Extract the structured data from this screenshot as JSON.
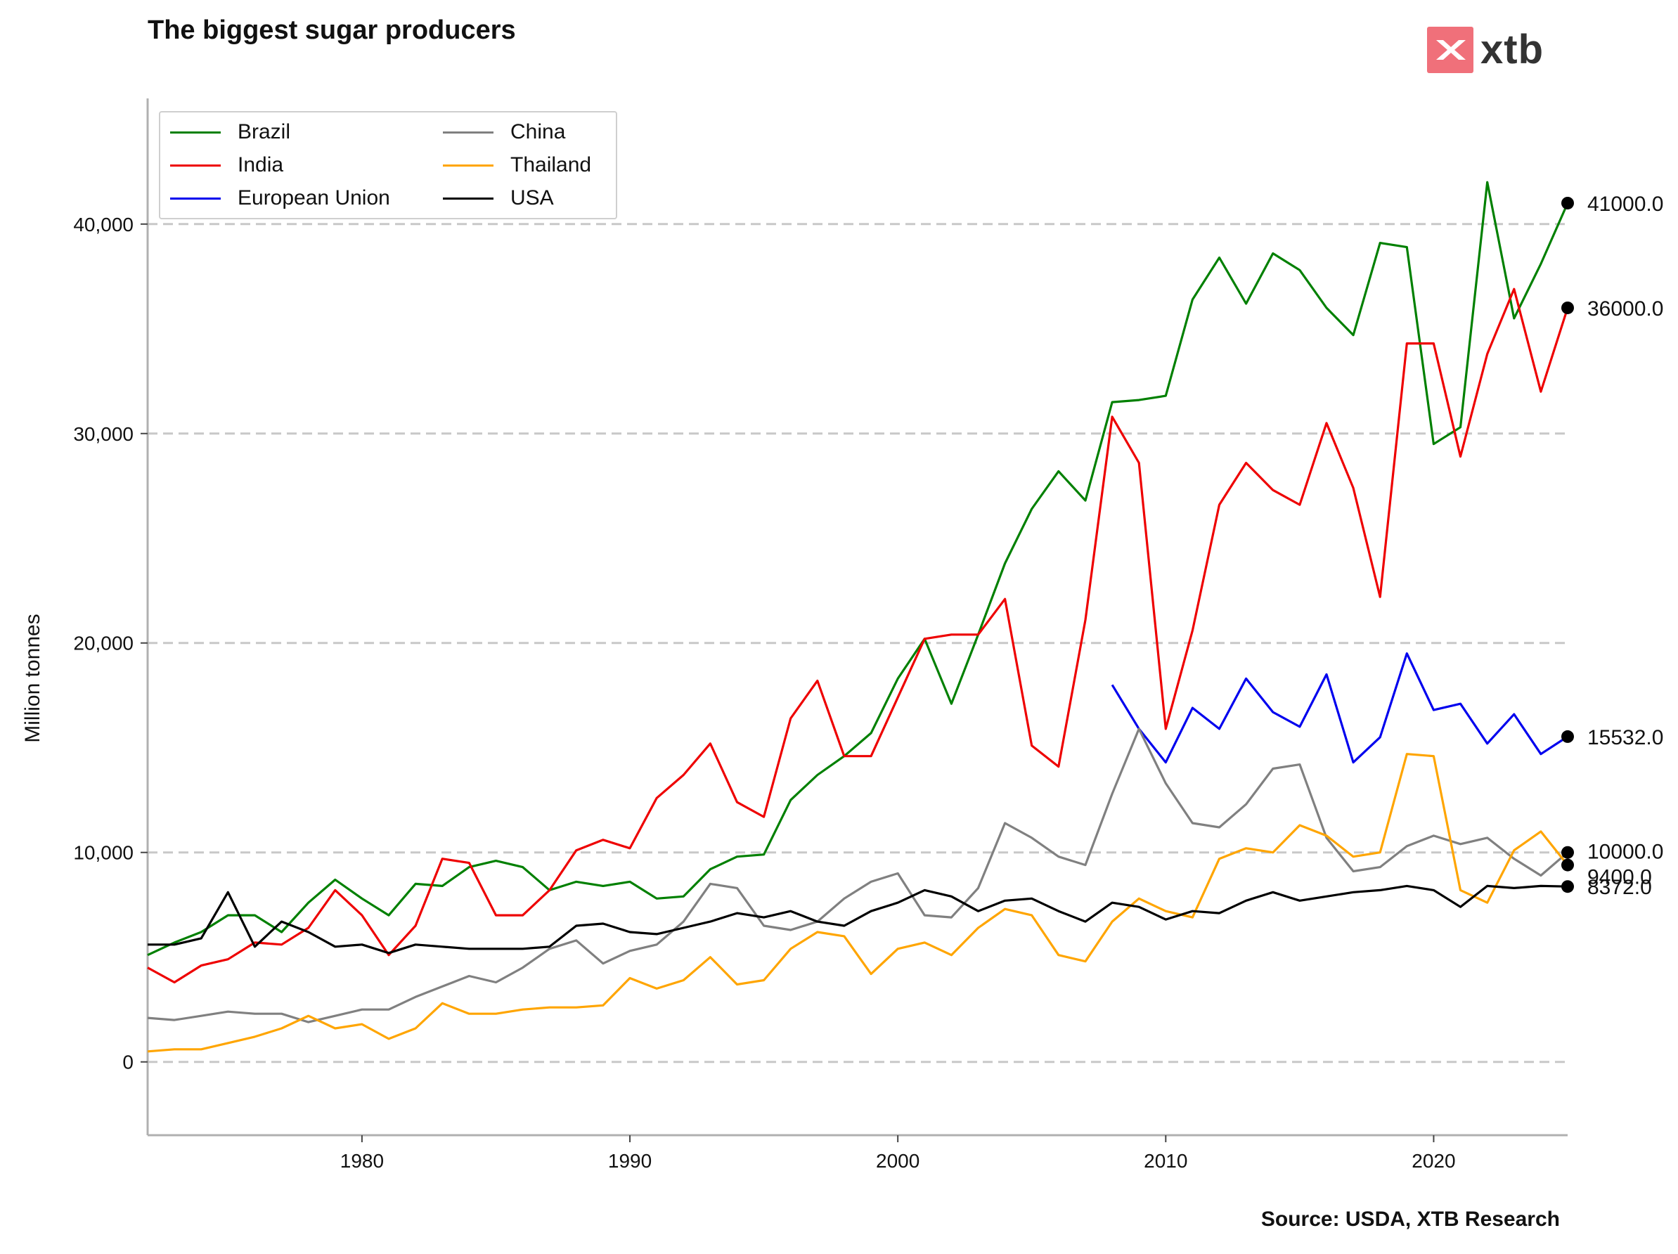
{
  "title": "The biggest sugar producers",
  "source": "Source: USDA, XTB Research",
  "logo_text": "xtb",
  "colors": {
    "logo": "#f0707a",
    "grid": "#c8c8c8"
  },
  "chart_data": {
    "type": "line",
    "title": "The biggest sugar producers",
    "xlabel": "",
    "ylabel": "Million tonnes",
    "xlim": [
      1972,
      2025
    ],
    "ylim": [
      -3500,
      46000
    ],
    "xticks": [
      1980,
      1990,
      2000,
      2010,
      2020
    ],
    "xtick_labels": [
      "1980",
      "1990",
      "2000",
      "2010",
      "2020"
    ],
    "yticks": [
      0,
      10000,
      20000,
      30000,
      40000
    ],
    "ytick_labels": [
      "0",
      "10,000",
      "20,000",
      "30,000",
      "40,000"
    ],
    "grid": "horizontal dashed",
    "legend_position": "top-left",
    "series": [
      {
        "name": "Brazil",
        "color": "#008000",
        "end_label": "41000.0",
        "x": [
          1972,
          1973,
          1974,
          1975,
          1976,
          1977,
          1978,
          1979,
          1980,
          1981,
          1982,
          1983,
          1984,
          1985,
          1986,
          1987,
          1988,
          1989,
          1990,
          1991,
          1992,
          1993,
          1994,
          1995,
          1996,
          1997,
          1998,
          1999,
          2000,
          2001,
          2002,
          2003,
          2004,
          2005,
          2006,
          2007,
          2008,
          2009,
          2010,
          2011,
          2012,
          2013,
          2014,
          2015,
          2016,
          2017,
          2018,
          2019,
          2020,
          2021,
          2022,
          2023,
          2024,
          2025
        ],
        "y": [
          5100,
          5700,
          6200,
          7000,
          7000,
          6200,
          7600,
          8700,
          7800,
          7000,
          8500,
          8400,
          9300,
          9600,
          9300,
          8200,
          8600,
          8400,
          8600,
          7800,
          7900,
          9200,
          9800,
          9900,
          12500,
          13700,
          14600,
          15700,
          18300,
          20200,
          17100,
          20400,
          23800,
          26400,
          28200,
          26800,
          31500,
          31600,
          31800,
          36400,
          38400,
          36200,
          38600,
          37800,
          36000,
          34700,
          39100,
          38900,
          29500,
          30300,
          42000,
          35500,
          38100,
          41000
        ]
      },
      {
        "name": "India",
        "color": "#ee0000",
        "end_label": "36000.0",
        "x": [
          1972,
          1973,
          1974,
          1975,
          1976,
          1977,
          1978,
          1979,
          1980,
          1981,
          1982,
          1983,
          1984,
          1985,
          1986,
          1987,
          1988,
          1989,
          1990,
          1991,
          1992,
          1993,
          1994,
          1995,
          1996,
          1997,
          1998,
          1999,
          2000,
          2001,
          2002,
          2003,
          2004,
          2005,
          2006,
          2007,
          2008,
          2009,
          2010,
          2011,
          2012,
          2013,
          2014,
          2015,
          2016,
          2017,
          2018,
          2019,
          2020,
          2021,
          2022,
          2023,
          2024,
          2025
        ],
        "y": [
          4500,
          3800,
          4600,
          4900,
          5700,
          5600,
          6400,
          8200,
          7000,
          5100,
          6500,
          9700,
          9500,
          7000,
          7000,
          8200,
          10100,
          10600,
          10200,
          12600,
          13700,
          15200,
          12400,
          11700,
          16400,
          18200,
          14600,
          14600,
          17400,
          20200,
          20400,
          20400,
          22100,
          15100,
          14100,
          21100,
          30800,
          28600,
          15900,
          20600,
          26600,
          28600,
          27300,
          26600,
          30500,
          27400,
          22200,
          34300,
          34300,
          28900,
          33800,
          36900,
          32000,
          36000
        ]
      },
      {
        "name": "European Union",
        "color": "#0000ee",
        "end_label": "15532.0",
        "x": [
          2008,
          2009,
          2010,
          2011,
          2012,
          2013,
          2014,
          2015,
          2016,
          2017,
          2018,
          2019,
          2020,
          2021,
          2022,
          2023,
          2024,
          2025
        ],
        "y": [
          18000,
          15900,
          14300,
          16900,
          15900,
          18300,
          16700,
          16000,
          18500,
          14300,
          15500,
          19500,
          16800,
          17100,
          15200,
          16600,
          14700,
          15532
        ]
      },
      {
        "name": "China",
        "color": "#808080",
        "end_label": "10000.0",
        "x": [
          1972,
          1973,
          1974,
          1975,
          1976,
          1977,
          1978,
          1979,
          1980,
          1981,
          1982,
          1983,
          1984,
          1985,
          1986,
          1987,
          1988,
          1989,
          1990,
          1991,
          1992,
          1993,
          1994,
          1995,
          1996,
          1997,
          1998,
          1999,
          2000,
          2001,
          2002,
          2003,
          2004,
          2005,
          2006,
          2007,
          2008,
          2009,
          2010,
          2011,
          2012,
          2013,
          2014,
          2015,
          2016,
          2017,
          2018,
          2019,
          2020,
          2021,
          2022,
          2023,
          2024,
          2025
        ],
        "y": [
          2100,
          2000,
          2200,
          2400,
          2300,
          2300,
          1900,
          2200,
          2500,
          2500,
          3100,
          3600,
          4100,
          3800,
          4500,
          5400,
          5800,
          4700,
          5300,
          5600,
          6700,
          8500,
          8300,
          6500,
          6300,
          6700,
          7800,
          8600,
          9000,
          7000,
          6900,
          8300,
          11400,
          10700,
          9800,
          9400,
          12800,
          15900,
          13300,
          11400,
          11200,
          12300,
          14000,
          14200,
          10700,
          9100,
          9300,
          10300,
          10800,
          10400,
          10700,
          9700,
          8900,
          10000
        ]
      },
      {
        "name": "Thailand",
        "color": "#ffa500",
        "end_label": "9400.0",
        "x": [
          1972,
          1973,
          1974,
          1975,
          1976,
          1977,
          1978,
          1979,
          1980,
          1981,
          1982,
          1983,
          1984,
          1985,
          1986,
          1987,
          1988,
          1989,
          1990,
          1991,
          1992,
          1993,
          1994,
          1995,
          1996,
          1997,
          1998,
          1999,
          2000,
          2001,
          2002,
          2003,
          2004,
          2005,
          2006,
          2007,
          2008,
          2009,
          2010,
          2011,
          2012,
          2013,
          2014,
          2015,
          2016,
          2017,
          2018,
          2019,
          2020,
          2021,
          2022,
          2023,
          2024,
          2025
        ],
        "y": [
          500,
          600,
          600,
          900,
          1200,
          1600,
          2200,
          1600,
          1800,
          1100,
          1600,
          2800,
          2300,
          2300,
          2500,
          2600,
          2600,
          2700,
          4000,
          3500,
          3900,
          5000,
          3700,
          3900,
          5400,
          6200,
          6000,
          4200,
          5400,
          5700,
          5100,
          6400,
          7300,
          7000,
          5100,
          4800,
          6700,
          7800,
          7200,
          6900,
          9700,
          10200,
          10000,
          11300,
          10800,
          9800,
          10000,
          14700,
          14600,
          8200,
          7600,
          10100,
          11000,
          9400
        ]
      },
      {
        "name": "USA",
        "color": "#000000",
        "end_label": "8372.0",
        "x": [
          1972,
          1973,
          1974,
          1975,
          1976,
          1977,
          1978,
          1979,
          1980,
          1981,
          1982,
          1983,
          1984,
          1985,
          1986,
          1987,
          1988,
          1989,
          1990,
          1991,
          1992,
          1993,
          1994,
          1995,
          1996,
          1997,
          1998,
          1999,
          2000,
          2001,
          2002,
          2003,
          2004,
          2005,
          2006,
          2007,
          2008,
          2009,
          2010,
          2011,
          2012,
          2013,
          2014,
          2015,
          2016,
          2017,
          2018,
          2019,
          2020,
          2021,
          2022,
          2023,
          2024,
          2025
        ],
        "y": [
          5600,
          5600,
          5900,
          8100,
          5500,
          6700,
          6200,
          5500,
          5600,
          5200,
          5600,
          5500,
          5400,
          5400,
          5400,
          5500,
          6500,
          6600,
          6200,
          6100,
          6400,
          6700,
          7100,
          6900,
          7200,
          6700,
          6500,
          7200,
          7600,
          8200,
          7900,
          7200,
          7700,
          7800,
          7200,
          6700,
          7600,
          7400,
          6800,
          7200,
          7100,
          7700,
          8100,
          7700,
          7900,
          8100,
          8200,
          8400,
          8200,
          7400,
          8400,
          8300,
          8400,
          8372
        ]
      }
    ]
  }
}
